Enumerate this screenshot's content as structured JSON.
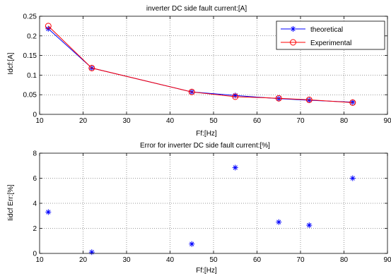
{
  "chart_data": [
    {
      "type": "line",
      "title": "inverter DC side fault current:[A]",
      "xlabel": "Ff:[Hz]",
      "ylabel": "Idcf:[A]",
      "xlim": [
        10,
        90
      ],
      "ylim": [
        0,
        0.25
      ],
      "xticks": [
        10,
        20,
        30,
        40,
        50,
        60,
        70,
        80,
        90
      ],
      "yticks": [
        0,
        0.05,
        0.1,
        0.15,
        0.2,
        0.25
      ],
      "ytick_labels": [
        "0",
        "0.05",
        "0.1",
        "0.15",
        "0.2",
        "0.25"
      ],
      "grid": true,
      "legend": "top-right",
      "x": [
        12,
        22,
        45,
        55,
        65,
        72,
        82
      ],
      "series": [
        {
          "name": "theoretical",
          "values": [
            0.218,
            0.118,
            0.057,
            0.048,
            0.04,
            0.036,
            0.031
          ],
          "color": "#0000ff",
          "marker": "star"
        },
        {
          "name": "Experimental",
          "values": [
            0.225,
            0.118,
            0.057,
            0.045,
            0.041,
            0.037,
            0.03
          ],
          "color": "#ff0000",
          "marker": "circle"
        }
      ]
    },
    {
      "type": "scatter",
      "title": "Error for inverter DC side fault current:[%]",
      "xlabel": "Ff:[Hz]",
      "ylabel": "Iidcf Err:[%]",
      "xlim": [
        10,
        90
      ],
      "ylim": [
        0,
        8
      ],
      "xticks": [
        10,
        20,
        30,
        40,
        50,
        60,
        70,
        80,
        90
      ],
      "yticks": [
        0,
        2,
        4,
        6,
        8
      ],
      "ytick_labels": [
        "0",
        "2",
        "4",
        "6",
        "8"
      ],
      "grid": true,
      "x": [
        12,
        22,
        45,
        55,
        65,
        72,
        82
      ],
      "series": [
        {
          "values": [
            3.3,
            0.1,
            0.75,
            6.85,
            2.5,
            2.25,
            6.0
          ],
          "color": "#0000ff",
          "marker": "star"
        }
      ]
    }
  ]
}
